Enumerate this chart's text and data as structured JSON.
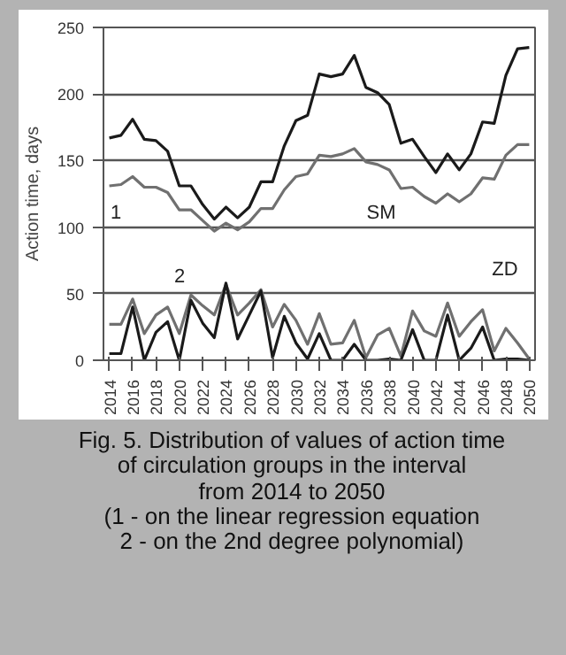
{
  "chart_data": {
    "type": "line",
    "ylabel": "Action time, days",
    "x": [
      2014,
      2015,
      2016,
      2017,
      2018,
      2019,
      2020,
      2021,
      2022,
      2023,
      2024,
      2025,
      2026,
      2027,
      2028,
      2029,
      2030,
      2031,
      2032,
      2033,
      2034,
      2035,
      2036,
      2037,
      2038,
      2039,
      2040,
      2041,
      2042,
      2043,
      2044,
      2045,
      2046,
      2047,
      2048,
      2049,
      2050
    ],
    "series": [
      {
        "color": "#1a1a1a",
        "values": [
          167,
          169,
          181,
          166,
          165,
          157,
          131,
          131,
          117,
          106,
          115,
          107,
          115,
          134,
          134,
          161,
          180,
          184,
          215,
          213,
          215,
          229,
          205,
          201,
          192,
          163,
          166,
          153,
          141,
          155,
          143,
          155,
          179,
          178,
          214,
          234,
          235
        ]
      },
      {
        "color": "#707070",
        "values": [
          131,
          132,
          138,
          130,
          130,
          126,
          113,
          113,
          105,
          97,
          103,
          98,
          104,
          114,
          114,
          128,
          138,
          140,
          154,
          153,
          155,
          159,
          149,
          147,
          143,
          129,
          130,
          123,
          118,
          125,
          119,
          125,
          137,
          136,
          154,
          162,
          162
        ]
      },
      {
        "color": "#707070",
        "values": [
          27,
          27,
          46,
          20,
          34,
          40,
          20,
          49,
          41,
          34,
          57,
          34,
          43,
          53,
          25,
          42,
          30,
          12,
          35,
          12,
          13,
          30,
          2,
          19,
          24,
          3,
          37,
          22,
          18,
          43,
          18,
          29,
          38,
          7,
          24,
          13,
          1
        ]
      },
      {
        "color": "#1a1a1a",
        "values": [
          5,
          5,
          40,
          0,
          21,
          29,
          0,
          45,
          28,
          17,
          58,
          16,
          34,
          52,
          2,
          33,
          13,
          1,
          20,
          0,
          0,
          12,
          0,
          0,
          1,
          0,
          23,
          0,
          0,
          34,
          0,
          9,
          25,
          0,
          1,
          1,
          0
        ]
      }
    ],
    "xlim": [
      2013.5,
      2050.5
    ],
    "xticks": [
      2014,
      2016,
      2018,
      2020,
      2022,
      2024,
      2026,
      2028,
      2030,
      2032,
      2034,
      2036,
      2038,
      2040,
      2042,
      2044,
      2046,
      2048,
      2050
    ],
    "ylim": [
      0,
      250
    ],
    "yticks": [
      0,
      50,
      100,
      150,
      200,
      250
    ],
    "grid": "y",
    "marker": "none",
    "line_style": "solid",
    "annotations": [
      "SM",
      "1",
      "2",
      "ZD",
      "Fig. 5. Distribution of values of action time\nof circulation groups in the interval\nfrom 2014 to 2050\n(1 - on the linear regression equation\n2 - on the 2nd degree polynomial)"
    ]
  }
}
